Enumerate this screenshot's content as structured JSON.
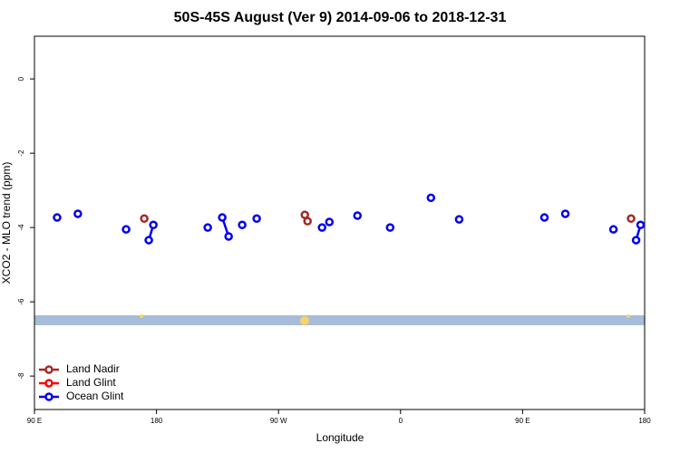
{
  "chart_data": {
    "type": "line",
    "title": "50S-45S August (Ver 9)   2014-09-06 to 2018-12-31",
    "x_label": "Longitude",
    "y_label": "XCO2 - MLO trend (ppm)",
    "xlim": [
      90,
      540
    ],
    "ylim": [
      -8.9,
      1.15
    ],
    "xticks": [
      {
        "value": 90,
        "label": "90 E"
      },
      180,
      {
        "value": 270,
        "label": "90 W"
      },
      {
        "value": 360,
        "label": "0"
      },
      {
        "value": 450,
        "label": "90 E"
      },
      {
        "value": 540,
        "label": "180"
      }
    ],
    "yticks": [
      0,
      -2,
      -4,
      -6,
      -8
    ],
    "legend_position": "lower-left",
    "series": [
      {
        "name": "Land Nadir",
        "color": "#a52a2a",
        "x": [
          171,
          null,
          289.4,
          291.4,
          null,
          530
        ],
        "values": [
          -3.76,
          null,
          -3.66,
          -3.83,
          null,
          -3.76
        ]
      },
      {
        "name": "Land Glint",
        "color": "#ff0000",
        "x": [],
        "values": []
      },
      {
        "name": "Ocean Glint",
        "color": "#0000ee",
        "x": [
          106.7,
          null,
          122,
          null,
          157.6,
          null,
          174.3,
          177.7,
          null,
          217.8,
          null,
          228.5,
          233.2,
          null,
          243.2,
          null,
          253.9,
          null,
          302.1,
          null,
          307.5,
          null,
          328.2,
          null,
          352.3,
          null,
          382.4,
          null,
          403.2,
          null,
          466.1,
          null,
          481.5,
          null,
          517,
          null,
          533.7,
          537
        ],
        "values": [
          -3.73,
          null,
          -3.63,
          null,
          -4.05,
          null,
          -4.34,
          -3.93,
          null,
          -4.0,
          null,
          -3.73,
          -4.24,
          null,
          -3.93,
          null,
          -3.76,
          null,
          -4.0,
          null,
          -3.85,
          null,
          -3.68,
          null,
          -4.0,
          null,
          -3.2,
          null,
          -3.78,
          null,
          -3.73,
          null,
          -3.63,
          null,
          -4.05,
          null,
          -4.34,
          -3.93
        ]
      }
    ]
  }
}
